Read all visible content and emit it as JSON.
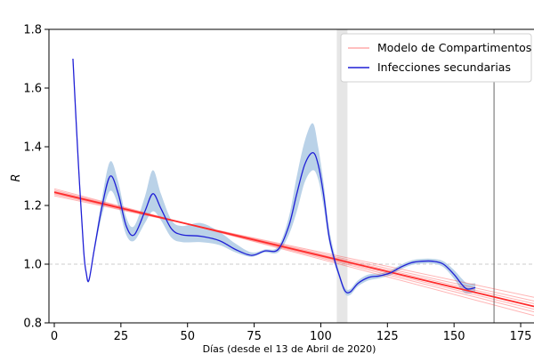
{
  "chart_data": {
    "type": "line",
    "title": "",
    "xlabel": "Días (desde el 13 de Abril de 2020)",
    "ylabel": "R",
    "xlim": [
      -2,
      180
    ],
    "ylim": [
      0.8,
      1.8
    ],
    "xticks": [
      0,
      25,
      50,
      75,
      100,
      125,
      150,
      175
    ],
    "yticks": [
      0.8,
      1.0,
      1.2,
      1.4,
      1.6,
      1.8
    ],
    "reference_line_y": 1.0,
    "vertical_line_x": 165,
    "shaded_band_x": [
      106,
      110
    ],
    "legend_position": "top-right",
    "colors": {
      "model": "#ff2b2b",
      "secondary": "#1f1fd6",
      "secondary_band": "#b3cde6",
      "ref_line": "#cccccc",
      "band_shade": "#e6e6e6",
      "vline": "#666666"
    },
    "series": [
      {
        "name": "Modelo de Compartimentos",
        "kind": "model",
        "x": [
          0,
          180
        ],
        "y": [
          1.245,
          0.856
        ],
        "spread": 0.012
      },
      {
        "name": "Infecciones secundarias",
        "kind": "secondary",
        "x": [
          7,
          9,
          11,
          12,
          13,
          15,
          18,
          21,
          24,
          27,
          30,
          34,
          37,
          40,
          44,
          48,
          55,
          62,
          68,
          74,
          79,
          84,
          88,
          91,
          94,
          97,
          99,
          101,
          103,
          105,
          107,
          109,
          111,
          114,
          118,
          122,
          126,
          130,
          134,
          138,
          142,
          146,
          150,
          153,
          155,
          158
        ],
        "y": [
          1.7,
          1.35,
          1.05,
          0.97,
          0.945,
          1.05,
          1.2,
          1.3,
          1.24,
          1.13,
          1.1,
          1.18,
          1.24,
          1.19,
          1.12,
          1.1,
          1.095,
          1.08,
          1.05,
          1.03,
          1.045,
          1.05,
          1.13,
          1.24,
          1.34,
          1.38,
          1.34,
          1.24,
          1.1,
          1.02,
          0.96,
          0.91,
          0.905,
          0.935,
          0.955,
          0.96,
          0.97,
          0.99,
          1.005,
          1.01,
          1.01,
          1.0,
          0.965,
          0.93,
          0.915,
          0.92
        ],
        "lower": [
          1.7,
          1.34,
          1.04,
          0.965,
          0.94,
          1.04,
          1.17,
          1.25,
          1.2,
          1.1,
          1.08,
          1.14,
          1.18,
          1.15,
          1.09,
          1.075,
          1.075,
          1.065,
          1.04,
          1.025,
          1.04,
          1.04,
          1.1,
          1.18,
          1.28,
          1.32,
          1.29,
          1.2,
          1.08,
          1.005,
          0.95,
          0.9,
          0.895,
          0.925,
          0.945,
          0.952,
          0.962,
          0.982,
          0.997,
          1.002,
          1.002,
          0.99,
          0.95,
          0.91,
          0.9,
          0.905
        ],
        "upper": [
          1.7,
          1.36,
          1.06,
          0.975,
          0.95,
          1.06,
          1.23,
          1.35,
          1.28,
          1.16,
          1.13,
          1.23,
          1.32,
          1.24,
          1.15,
          1.13,
          1.14,
          1.11,
          1.07,
          1.04,
          1.05,
          1.06,
          1.16,
          1.3,
          1.42,
          1.48,
          1.4,
          1.28,
          1.13,
          1.04,
          0.97,
          0.92,
          0.915,
          0.945,
          0.965,
          0.968,
          0.978,
          0.998,
          1.013,
          1.018,
          1.018,
          1.01,
          0.98,
          0.95,
          0.935,
          0.935
        ]
      }
    ]
  }
}
